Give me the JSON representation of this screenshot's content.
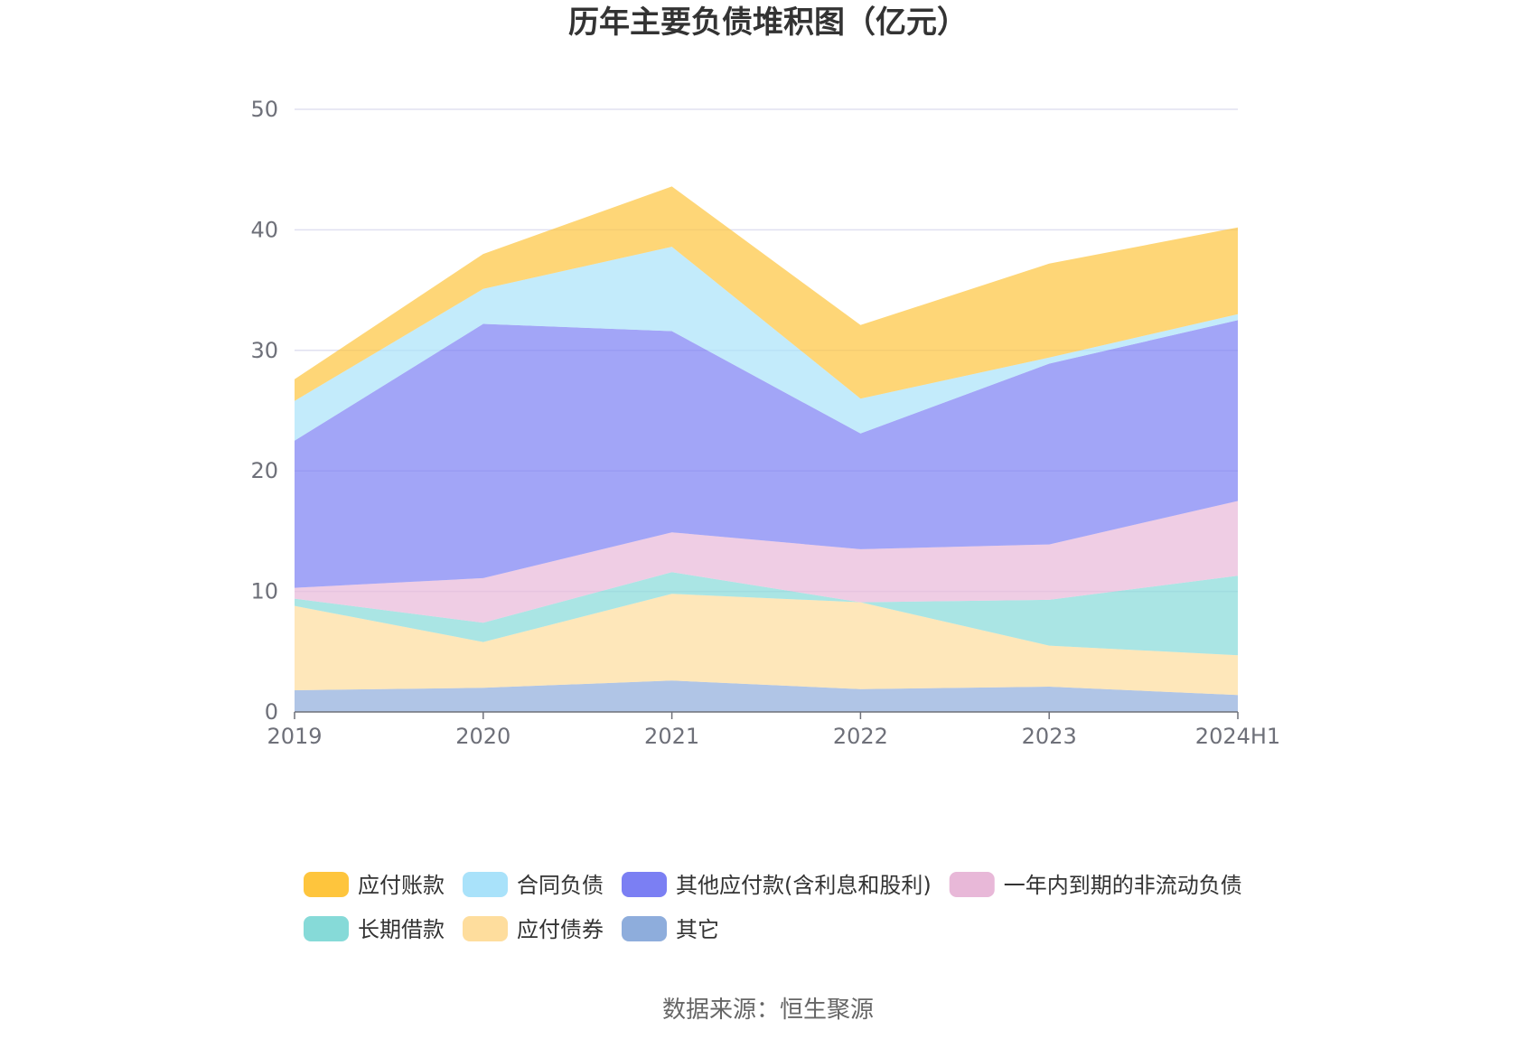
{
  "chart_data": {
    "type": "area",
    "title": "历年主要负债堆积图（亿元）",
    "source": "数据来源：恒生聚源",
    "categories": [
      "2019",
      "2020",
      "2021",
      "2022",
      "2023",
      "2024H1"
    ],
    "ylim": [
      0,
      50
    ],
    "yticks": [
      0,
      10,
      20,
      30,
      40,
      50
    ],
    "grid": true,
    "legend_position": "bottom",
    "series": [
      {
        "name": "其它",
        "color": "#8eaddc",
        "values": [
          1.8,
          2.0,
          2.6,
          1.9,
          2.1,
          1.4
        ]
      },
      {
        "name": "应付债券",
        "color": "#fedd9d",
        "values": [
          7.0,
          3.8,
          7.2,
          7.2,
          3.4,
          3.3
        ]
      },
      {
        "name": "长期借款",
        "color": "#86dad8",
        "values": [
          0.6,
          1.6,
          1.8,
          0.0,
          3.8,
          6.6
        ]
      },
      {
        "name": "一年内到期的非流动负债",
        "color": "#e8b8d8",
        "values": [
          0.9,
          3.7,
          3.3,
          4.4,
          4.6,
          6.2
        ]
      },
      {
        "name": "其他应付款(含利息和股利)",
        "color": "#7b7ff3",
        "values": [
          12.2,
          21.1,
          16.7,
          9.6,
          15.0,
          15.0
        ]
      },
      {
        "name": "合同负债",
        "color": "#a9e2fa",
        "values": [
          3.3,
          2.9,
          7.0,
          2.9,
          0.5,
          0.5
        ]
      },
      {
        "name": "应付账款",
        "color": "#fec53d",
        "values": [
          1.8,
          2.9,
          5.0,
          6.1,
          7.8,
          7.2
        ]
      }
    ],
    "legend_order": [
      "应付账款",
      "合同负债",
      "其他应付款(含利息和股利)",
      "一年内到期的非流动负债",
      "长期借款",
      "应付债券",
      "其它"
    ]
  }
}
